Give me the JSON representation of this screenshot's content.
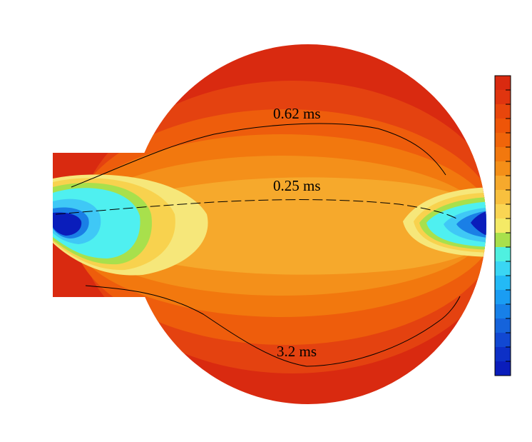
{
  "contour_labels": [
    {
      "id": "label-062",
      "text": "0.62 ms"
    },
    {
      "id": "label-025",
      "text": "0.25 ms"
    },
    {
      "id": "label-32",
      "text": "3.2 ms"
    }
  ],
  "colorbar": {
    "colors": [
      "#d92a10",
      "#e0350f",
      "#e8460c",
      "#ee5508",
      "#f0650a",
      "#f2780e",
      "#f48f18",
      "#f6a92c",
      "#f8c03e",
      "#f9d553",
      "#f4ea66",
      "#a8e04c",
      "#4ff0e0",
      "#3ad6f4",
      "#23baf6",
      "#1a9df3",
      "#1780e8",
      "#1563db",
      "#1148d2",
      "#0d30c6",
      "#0a1dbb"
    ]
  },
  "field_colors": {
    "outer": "#d92a10",
    "band1": "#e44210",
    "band2": "#ee5d0c",
    "band3": "#f2780e",
    "band4": "#f4901a",
    "core": "#f6a92c",
    "yellow": "#f8d24e",
    "lightyellow": "#f6e77a",
    "green": "#a8e04c",
    "cyan": "#4ff0f0",
    "lightblue": "#3fc8f6",
    "blue": "#1a7fe6",
    "deepblue": "#0a1dbb"
  }
}
